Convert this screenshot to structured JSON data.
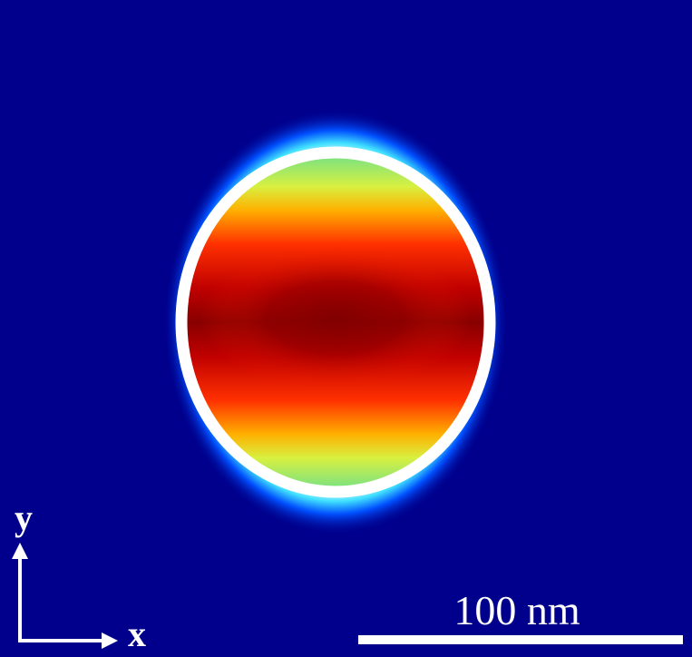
{
  "axes": {
    "y_label": "y",
    "x_label": "x"
  },
  "scale_bar": {
    "label": "100 nm"
  }
}
